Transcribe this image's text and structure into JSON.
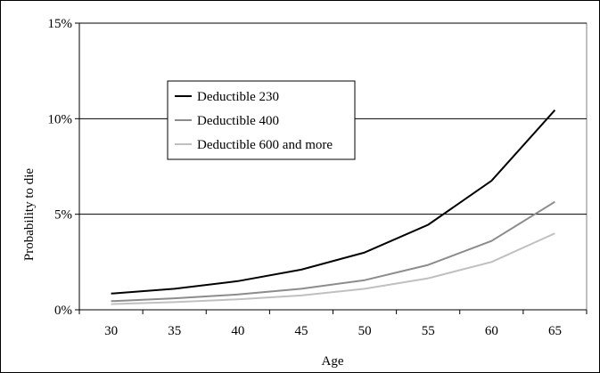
{
  "chart_data": {
    "type": "line",
    "title": "",
    "xlabel": "Age",
    "ylabel": "Probability to die",
    "categories": [
      "30",
      "35",
      "40",
      "45",
      "50",
      "55",
      "60",
      "65"
    ],
    "y_ticks": [
      "0%",
      "5%",
      "10%",
      "15%"
    ],
    "ylim": [
      0,
      15
    ],
    "grid": "horizontal major lines",
    "legend_position": "upper-left inside plot",
    "series": [
      {
        "name": "Deductible 230",
        "color": "#000000",
        "values": [
          0.85,
          1.1,
          1.5,
          2.1,
          3.0,
          4.45,
          6.75,
          10.45
        ]
      },
      {
        "name": "Deductible 400",
        "color": "#8c8c8c",
        "values": [
          0.45,
          0.6,
          0.8,
          1.1,
          1.55,
          2.35,
          3.6,
          5.65
        ]
      },
      {
        "name": "Deductible 600 and more",
        "color": "#c0c0c0",
        "values": [
          0.3,
          0.4,
          0.55,
          0.75,
          1.1,
          1.65,
          2.5,
          4.0
        ]
      }
    ]
  }
}
